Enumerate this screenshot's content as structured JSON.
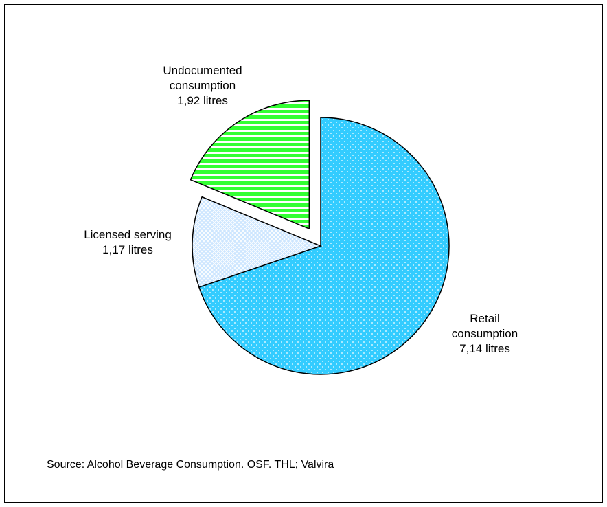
{
  "chart_data": {
    "type": "pie",
    "title": "",
    "unit": "litres",
    "slices": [
      {
        "label": "Retail consumption",
        "value": 7.14,
        "value_text": "7,14 litres",
        "color": "#33ccff",
        "pattern": "dots",
        "exploded": false
      },
      {
        "label": "Licensed serving",
        "value": 1.17,
        "value_text": "1,17 litres",
        "color": "#cce6ff",
        "pattern": "diamond-grid",
        "exploded": false
      },
      {
        "label": "Undocumented consumption",
        "value": 1.92,
        "value_text": "1,92 litres",
        "color": "#33ff33",
        "pattern": "horizontal-stripes",
        "exploded": true
      }
    ],
    "legend": "none"
  },
  "labels": {
    "undocumented": "Undocumented\nconsumption\n1,92 litres",
    "licensed": "Licensed serving\n1,17 litres",
    "retail": "Retail\nconsumption\n7,14 litres"
  },
  "source": "Source: Alcohol Beverage Consumption. OSF. THL; Valvira"
}
